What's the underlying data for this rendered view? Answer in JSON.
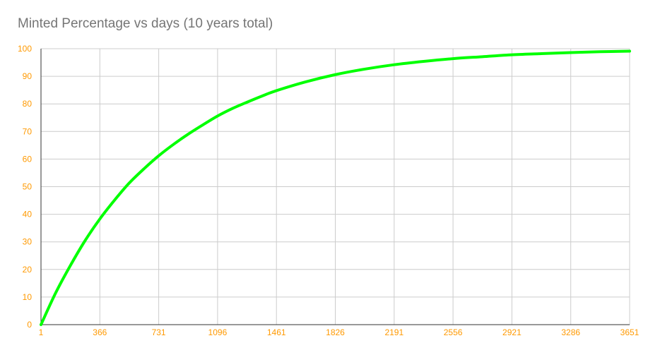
{
  "chart_data": {
    "type": "line",
    "title": "Minted Percentage vs days (10 years total)",
    "xlabel": "",
    "ylabel": "",
    "xlim": [
      1,
      3651
    ],
    "ylim": [
      0,
      100
    ],
    "x_ticks": [
      "1",
      "366",
      "731",
      "1096",
      "1461",
      "1826",
      "2191",
      "2556",
      "2921",
      "3286",
      "3651"
    ],
    "y_ticks": [
      "0",
      "10",
      "20",
      "30",
      "40",
      "50",
      "60",
      "70",
      "80",
      "90",
      "100"
    ],
    "grid": true,
    "legend": "none",
    "colors": {
      "line": "#00ff00",
      "tick_labels": "#ff9900",
      "grid": "#cccccc",
      "axis": "#333333",
      "title": "#757575"
    },
    "series": [
      {
        "x": [
          1,
          92,
          183,
          275,
          366,
          457,
          548,
          640,
          731,
          822,
          913,
          1005,
          1096,
          1187,
          1278,
          1370,
          1461,
          1643,
          1826,
          2008,
          2191,
          2373,
          2556,
          2738,
          2921,
          3103,
          3286,
          3468,
          3651
        ],
        "values": [
          0,
          11.5,
          21.4,
          30.5,
          38.3,
          45.1,
          51.3,
          56.5,
          61.2,
          65.3,
          69.0,
          72.4,
          75.6,
          78.3,
          80.6,
          82.8,
          84.8,
          88.0,
          90.6,
          92.6,
          94.2,
          95.4,
          96.4,
          97.1,
          97.8,
          98.2,
          98.6,
          98.9,
          99.1
        ]
      }
    ]
  }
}
